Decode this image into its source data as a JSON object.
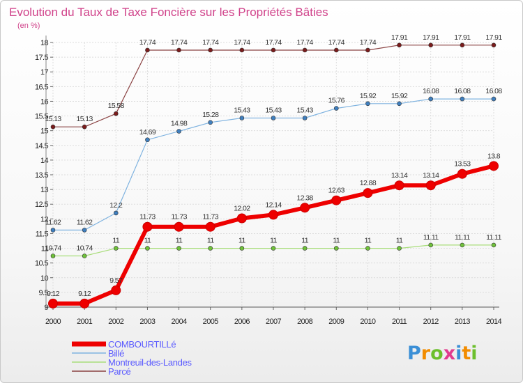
{
  "chart_data": {
    "type": "line",
    "title": "Evolution du Taux de Taxe Foncière sur les Propriétés Bâties",
    "ylabel": "(en %)",
    "xlabel": "",
    "ylim": [
      9,
      18
    ],
    "yticks": [
      "9",
      "9.5",
      "10",
      "10.5",
      "11",
      "11.5",
      "12",
      "12.5",
      "13",
      "13.5",
      "14",
      "14.5",
      "15",
      "15.5",
      "16",
      "16.5",
      "17",
      "17.5",
      "18"
    ],
    "x": [
      "2000",
      "2001",
      "2002",
      "2003",
      "2004",
      "2005",
      "2006",
      "2007",
      "2008",
      "2009",
      "2010",
      "2011",
      "2012",
      "2013",
      "2014"
    ],
    "grid": true,
    "legend_position": "bottom-left",
    "series": [
      {
        "name": "Parcé",
        "color": "#7b1c1c",
        "line_color": "#8a4242",
        "values": [
          15.13,
          15.13,
          15.58,
          17.74,
          17.74,
          17.74,
          17.74,
          17.74,
          17.74,
          17.74,
          17.74,
          17.91,
          17.91,
          17.91,
          17.91
        ],
        "labels": [
          "15.13",
          "15.13",
          "15.58",
          "17.74",
          "17.74",
          "17.74",
          "17.74",
          "17.74",
          "17.74",
          "17.74",
          "17.74",
          "17.91",
          "17.91",
          "17.91",
          "17.91"
        ]
      },
      {
        "name": "Billé",
        "color": "#3f7fbf",
        "line_color": "#7fb3e0",
        "values": [
          11.62,
          11.62,
          12.2,
          14.69,
          14.98,
          15.28,
          15.43,
          15.43,
          15.43,
          15.76,
          15.92,
          15.92,
          16.08,
          16.08,
          16.08
        ],
        "labels": [
          "11.62",
          "11.62",
          "12.2",
          "14.69",
          "14.98",
          "15.28",
          "15.43",
          "15.43",
          "15.43",
          "15.76",
          "15.92",
          "15.92",
          "16.08",
          "16.08",
          "16.08"
        ]
      },
      {
        "name": "Montreuil-des-Landes",
        "color": "#6fc13a",
        "line_color": "#a8dd7a",
        "values": [
          10.74,
          10.74,
          11,
          11,
          11,
          11,
          11,
          11,
          11,
          11,
          11,
          11,
          11.11,
          11.11,
          11.11
        ],
        "labels": [
          "10.74",
          "10.74",
          "11",
          "11",
          "11",
          "11",
          "11",
          "11",
          "11",
          "11",
          "11",
          "11",
          "11.11",
          "11.11",
          "11.11"
        ]
      },
      {
        "name": "COMBOURTILLé",
        "color": "#ee0000",
        "line_color": "#ee0000",
        "values": [
          9.12,
          9.12,
          9.57,
          11.73,
          11.73,
          11.73,
          12.02,
          12.14,
          12.38,
          12.63,
          12.88,
          13.14,
          13.14,
          13.53,
          13.8
        ],
        "labels": [
          "9.12",
          "9.12",
          "9.57",
          "11.73",
          "11.73",
          "11.73",
          "12.02",
          "12.14",
          "12.38",
          "12.63",
          "12.88",
          "13.14",
          "13.14",
          "13.53",
          "13.8"
        ]
      }
    ],
    "legend": [
      {
        "name": "COMBOURTILLé",
        "color": "#ee0000",
        "text_color": "#5a5aff",
        "thick": true
      },
      {
        "name": "Billé",
        "color": "#7fb3e0",
        "text_color": "#5a5aff",
        "thick": false
      },
      {
        "name": "Montreuil-des-Landes",
        "color": "#a8dd7a",
        "text_color": "#5a5aff",
        "thick": false
      },
      {
        "name": "Parcé",
        "color": "#8a4242",
        "text_color": "#5a5aff",
        "thick": false
      }
    ]
  },
  "logo": {
    "text": "Proxiti",
    "letters": [
      {
        "char": "P",
        "color": "#3b8fd6"
      },
      {
        "char": "r",
        "color": "#f28c00"
      },
      {
        "char": "o",
        "color": "#6cbf2c"
      },
      {
        "char": "x",
        "color": "#e23b8e"
      },
      {
        "char": "i",
        "color": "#3b8fd6"
      },
      {
        "char": "t",
        "color": "#f28c00"
      },
      {
        "char": "i",
        "color": "#6cbf2c"
      }
    ]
  }
}
